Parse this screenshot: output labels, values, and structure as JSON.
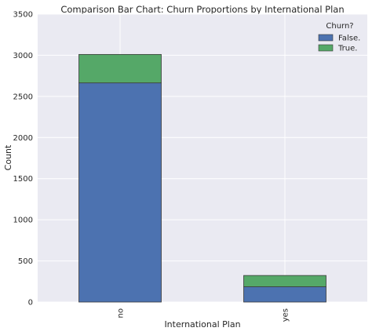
{
  "chart_data": {
    "type": "bar",
    "stacked": true,
    "title": "Comparison Bar Chart: Churn Proportions by International Plan",
    "xlabel": "International Plan",
    "ylabel": "Count",
    "categories": [
      "no",
      "yes"
    ],
    "series": [
      {
        "name": "False.",
        "values": [
          2664,
          186
        ],
        "color": "#4c72b0"
      },
      {
        "name": "True.",
        "values": [
          346,
          137
        ],
        "color": "#55a868"
      }
    ],
    "ylim": [
      0,
      3500
    ],
    "yticks": [
      "0",
      "500",
      "1000",
      "1500",
      "2000",
      "2500",
      "3000",
      "3500"
    ],
    "grid": true,
    "legend": {
      "title": "Churn?",
      "position": "top-right"
    },
    "background": "#eaeaf2"
  }
}
